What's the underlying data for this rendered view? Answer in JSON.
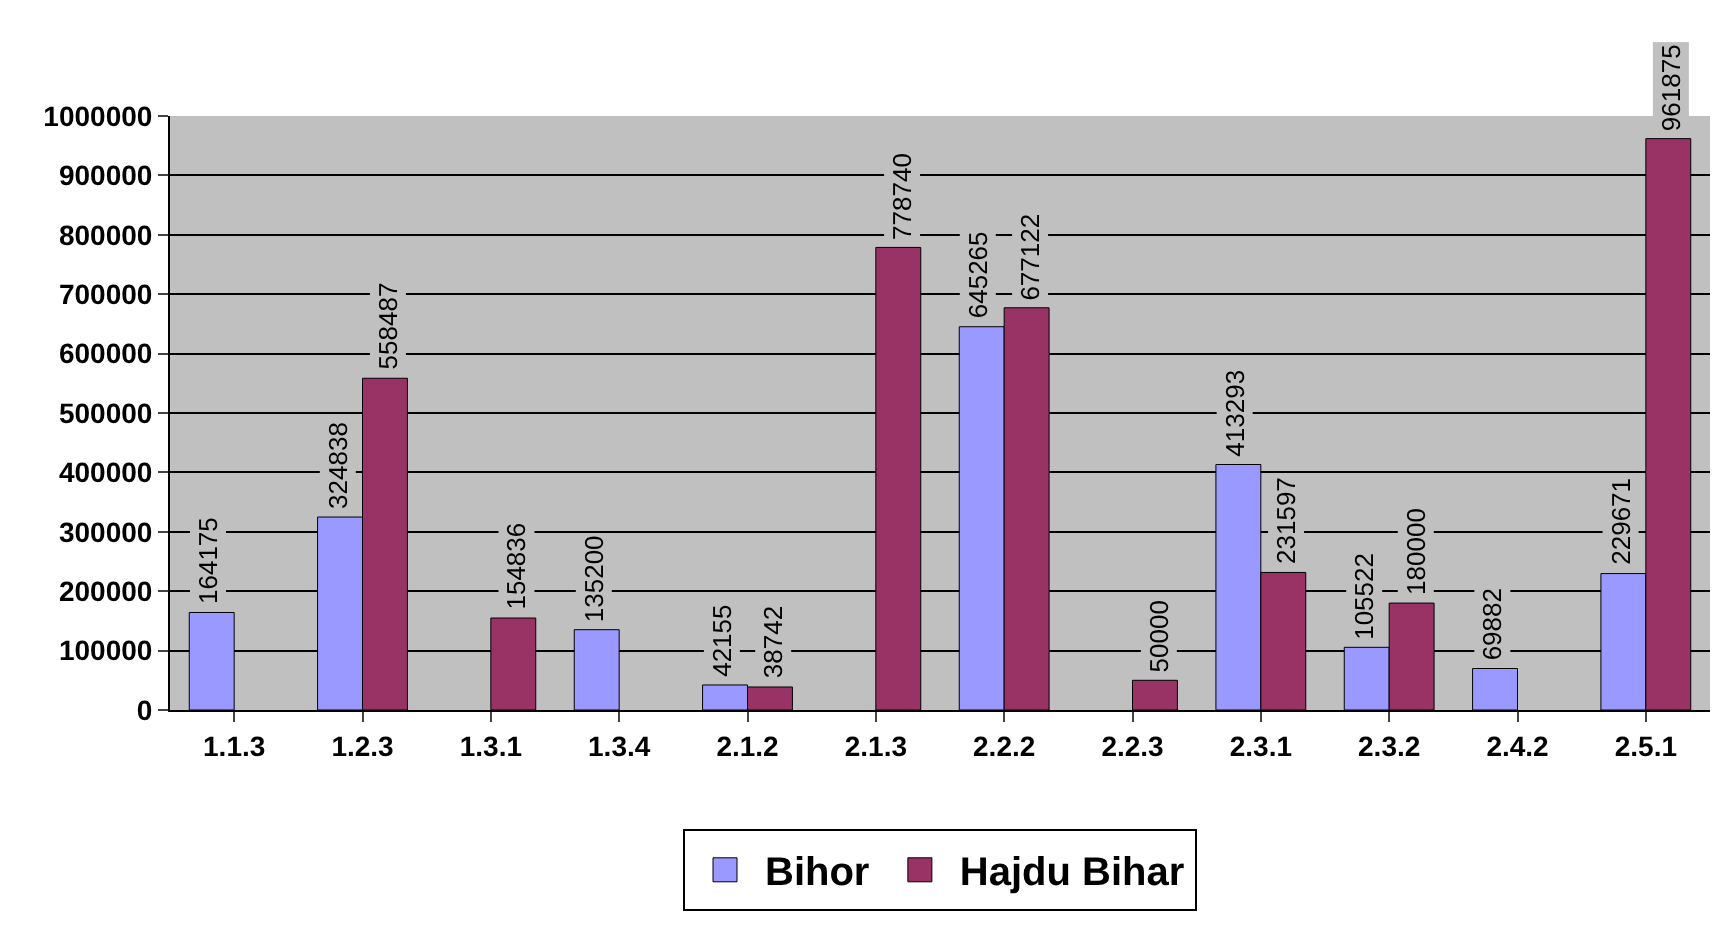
{
  "chart_data": {
    "type": "bar",
    "categories": [
      "1.1.3",
      "1.2.3",
      "1.3.1",
      "1.3.4",
      "2.1.2",
      "2.1.3",
      "2.2.2",
      "2.2.3",
      "2.3.1",
      "2.3.2",
      "2.4.2",
      "2.5.1"
    ],
    "series": [
      {
        "name": "Bihor",
        "color": "#9999ff",
        "values": [
          164175,
          324838,
          null,
          135200,
          42155,
          null,
          645265,
          null,
          413293,
          105522,
          69882,
          229671
        ]
      },
      {
        "name": "Hajdu Bihar",
        "color": "#993366",
        "values": [
          null,
          558487,
          154836,
          null,
          38742,
          778740,
          677122,
          50000,
          231597,
          180000,
          null,
          961875
        ]
      }
    ],
    "ylim": [
      0,
      1000000
    ],
    "yticks": [
      0,
      100000,
      200000,
      300000,
      400000,
      500000,
      600000,
      700000,
      800000,
      900000,
      1000000
    ],
    "grid": "y",
    "legend": "bottom",
    "data_labels": true
  }
}
